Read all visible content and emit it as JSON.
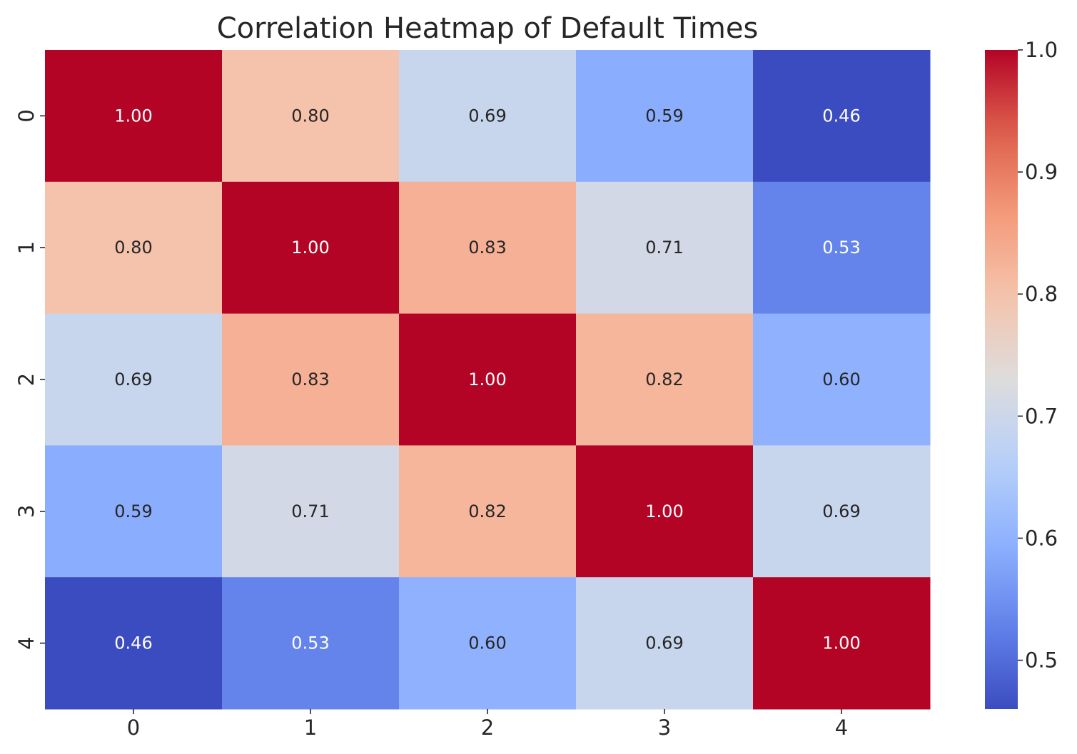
{
  "chart_data": {
    "type": "heatmap",
    "title": "Correlation Heatmap of Default Times",
    "xlabel": "",
    "ylabel": "",
    "x_categories": [
      "0",
      "1",
      "2",
      "3",
      "4"
    ],
    "y_categories": [
      "0",
      "1",
      "2",
      "3",
      "4"
    ],
    "values": [
      [
        1.0,
        0.8,
        0.69,
        0.59,
        0.46
      ],
      [
        0.8,
        1.0,
        0.83,
        0.71,
        0.53
      ],
      [
        0.69,
        0.83,
        1.0,
        0.82,
        0.6
      ],
      [
        0.59,
        0.71,
        0.82,
        1.0,
        0.69
      ],
      [
        0.46,
        0.53,
        0.6,
        0.69,
        1.0
      ]
    ],
    "annotations": [
      [
        "1.00",
        "0.80",
        "0.69",
        "0.59",
        "0.46"
      ],
      [
        "0.80",
        "1.00",
        "0.83",
        "0.71",
        "0.53"
      ],
      [
        "0.69",
        "0.83",
        "1.00",
        "0.82",
        "0.60"
      ],
      [
        "0.59",
        "0.71",
        "0.82",
        "1.00",
        "0.69"
      ],
      [
        "0.46",
        "0.53",
        "0.60",
        "0.69",
        "1.00"
      ]
    ],
    "colormap": "coolwarm",
    "vmin": 0.46,
    "vmax": 1.0,
    "colorbar": {
      "ticks": [
        0.5,
        0.6,
        0.7,
        0.8,
        0.9,
        1.0
      ],
      "tick_labels": [
        "0.5",
        "0.6",
        "0.7",
        "0.8",
        "0.9",
        "1.0"
      ],
      "placement": "right"
    },
    "grid": false
  }
}
